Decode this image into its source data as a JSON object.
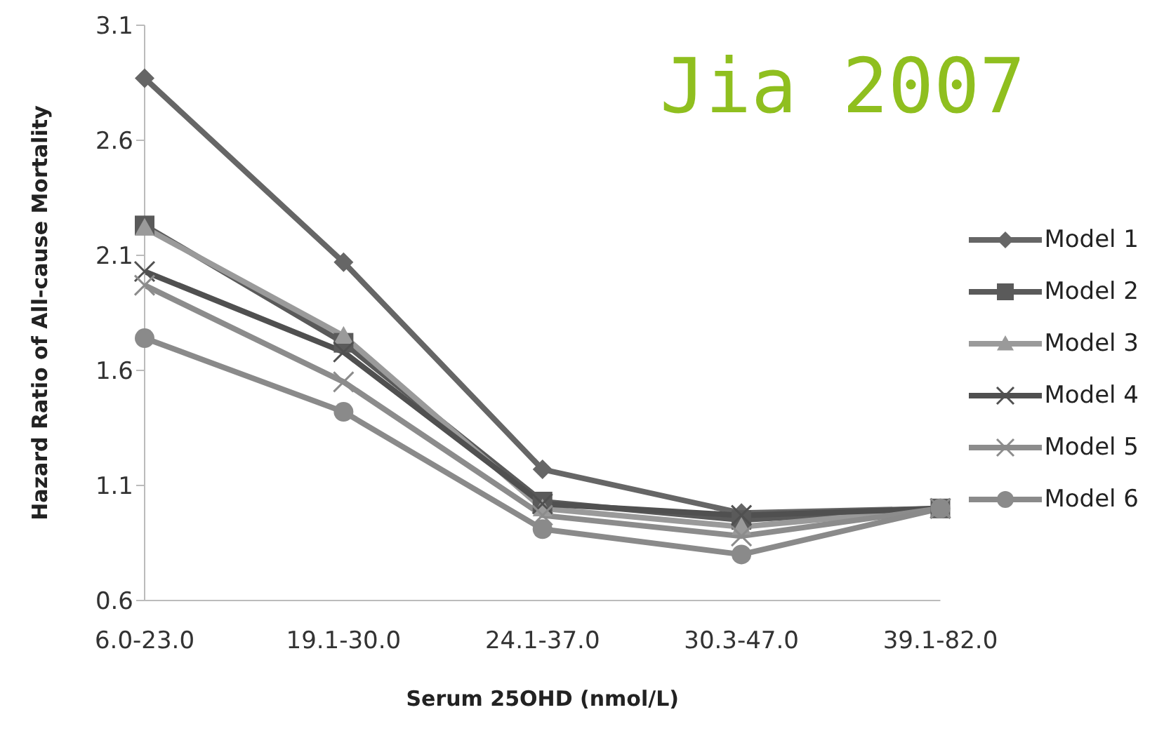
{
  "chart_data": {
    "type": "line",
    "xlabel": "Serum 25OHD (nmol/L)",
    "ylabel": "Hazard Ratio of All-cause Mortality",
    "annotations": [
      "Jia 2007"
    ],
    "categories": [
      "6.0-23.0",
      "19.1-30.0",
      "24.1-37.0",
      "30.3-47.0",
      "39.1-82.0"
    ],
    "ylim": [
      0.6,
      3.1
    ],
    "yticks": [
      0.6,
      1.1,
      1.6,
      2.1,
      2.6,
      3.1
    ],
    "grid": false,
    "legend": "right",
    "series": [
      {
        "name": "Model 1",
        "color": "#666666",
        "marker": "diamond",
        "values": [
          2.87,
          2.07,
          1.17,
          0.98,
          1.0
        ]
      },
      {
        "name": "Model 2",
        "color": "#5a5a5a",
        "marker": "square",
        "values": [
          2.23,
          1.72,
          1.03,
          0.95,
          1.0
        ]
      },
      {
        "name": "Model 3",
        "color": "#9a9a9a",
        "marker": "triangle",
        "values": [
          2.22,
          1.75,
          1.0,
          0.92,
          1.0
        ]
      },
      {
        "name": "Model 4",
        "color": "#505050",
        "marker": "cross",
        "values": [
          2.03,
          1.68,
          1.02,
          0.97,
          1.0
        ]
      },
      {
        "name": "Model 5",
        "color": "#8c8c8c",
        "marker": "cross",
        "values": [
          1.97,
          1.55,
          0.97,
          0.88,
          1.0
        ]
      },
      {
        "name": "Model 6",
        "color": "#8a8a8a",
        "marker": "circle",
        "values": [
          1.74,
          1.42,
          0.91,
          0.8,
          1.0
        ]
      }
    ]
  }
}
